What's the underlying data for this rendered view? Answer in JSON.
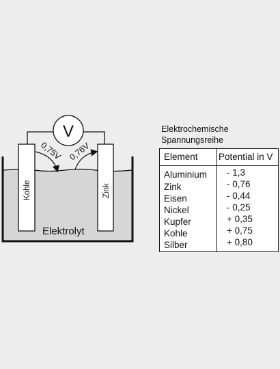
{
  "diagram": {
    "voltmeter_symbol": "V",
    "voltage_left": "0,75V",
    "voltage_right": "0,76V",
    "electrode_left": "Kohle",
    "electrode_right": "Zink",
    "electrolyte": "Elektrolyt"
  },
  "table": {
    "title_line1": "Elektrochemische",
    "title_line2": "Spannungsreihe",
    "header_element": "Element",
    "header_potential": "Potential in V",
    "rows": [
      {
        "element": "Aluminium",
        "potential": "- 1,3"
      },
      {
        "element": "Zink",
        "potential": "- 0,76"
      },
      {
        "element": "Eisen",
        "potential": "- 0,44"
      },
      {
        "element": "Nickel",
        "potential": "- 0,25"
      },
      {
        "element": "Kupfer",
        "potential": "+ 0,35"
      },
      {
        "element": "Kohle",
        "potential": "+ 0,75"
      },
      {
        "element": "Silber",
        "potential": "+ 0,80"
      }
    ]
  }
}
